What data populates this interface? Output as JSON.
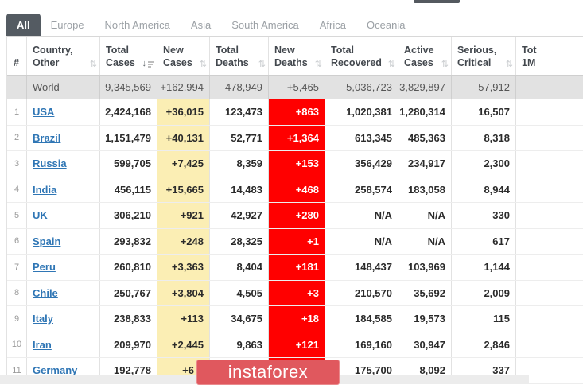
{
  "colors": {
    "tab_active_bg": "#545B62",
    "link": "#2F76B5",
    "new_cases_bg": "#FBEEB4",
    "new_deaths_bg": "#FF0000",
    "world_row_bg": "#E2E2E2",
    "watermark_bg": "#E0585E",
    "bottom_strip_bg": "#ECECEC"
  },
  "tabs": [
    {
      "label": "All",
      "active": true
    },
    {
      "label": "Europe",
      "active": false
    },
    {
      "label": "North America",
      "active": false
    },
    {
      "label": "Asia",
      "active": false
    },
    {
      "label": "South America",
      "active": false
    },
    {
      "label": "Africa",
      "active": false
    },
    {
      "label": "Oceania",
      "active": false
    }
  ],
  "table": {
    "columns": [
      {
        "key": "rank",
        "lines": [
          "#"
        ],
        "sort": "none",
        "align": "center"
      },
      {
        "key": "country",
        "lines": [
          "Country,",
          "Other"
        ],
        "sort": "both",
        "align": "left"
      },
      {
        "key": "total_cases",
        "lines": [
          "Total",
          "Cases"
        ],
        "sort": "desc",
        "align": "right"
      },
      {
        "key": "new_cases",
        "lines": [
          "New",
          "Cases"
        ],
        "sort": "both",
        "align": "right"
      },
      {
        "key": "total_deaths",
        "lines": [
          "Total",
          "Deaths"
        ],
        "sort": "both",
        "align": "right"
      },
      {
        "key": "new_deaths",
        "lines": [
          "New",
          "Deaths"
        ],
        "sort": "both",
        "align": "right"
      },
      {
        "key": "total_recovered",
        "lines": [
          "Total",
          "Recovered"
        ],
        "sort": "both",
        "align": "right"
      },
      {
        "key": "active_cases",
        "lines": [
          "Active",
          "Cases"
        ],
        "sort": "both",
        "align": "right"
      },
      {
        "key": "serious_critical",
        "lines": [
          "Serious,",
          "Critical"
        ],
        "sort": "both",
        "align": "right"
      },
      {
        "key": "per_million",
        "lines": [
          "Tot",
          "1M"
        ],
        "sort": "none",
        "align": "right"
      }
    ],
    "world_row": {
      "rank": "",
      "country": "World",
      "total_cases": "9,345,569",
      "new_cases": "+162,994",
      "total_deaths": "478,949",
      "new_deaths": "+5,465",
      "total_recovered": "5,036,723",
      "active_cases": "3,829,897",
      "serious_critical": "57,912",
      "per_million": ""
    },
    "rows": [
      {
        "rank": "1",
        "country": "USA",
        "total_cases": "2,424,168",
        "new_cases": "+36,015",
        "total_deaths": "123,473",
        "new_deaths": "+863",
        "total_recovered": "1,020,381",
        "active_cases": "1,280,314",
        "serious_critical": "16,507",
        "per_million": ""
      },
      {
        "rank": "2",
        "country": "Brazil",
        "total_cases": "1,151,479",
        "new_cases": "+40,131",
        "total_deaths": "52,771",
        "new_deaths": "+1,364",
        "total_recovered": "613,345",
        "active_cases": "485,363",
        "serious_critical": "8,318",
        "per_million": ""
      },
      {
        "rank": "3",
        "country": "Russia",
        "total_cases": "599,705",
        "new_cases": "+7,425",
        "total_deaths": "8,359",
        "new_deaths": "+153",
        "total_recovered": "356,429",
        "active_cases": "234,917",
        "serious_critical": "2,300",
        "per_million": ""
      },
      {
        "rank": "4",
        "country": "India",
        "total_cases": "456,115",
        "new_cases": "+15,665",
        "total_deaths": "14,483",
        "new_deaths": "+468",
        "total_recovered": "258,574",
        "active_cases": "183,058",
        "serious_critical": "8,944",
        "per_million": ""
      },
      {
        "rank": "5",
        "country": "UK",
        "total_cases": "306,210",
        "new_cases": "+921",
        "total_deaths": "42,927",
        "new_deaths": "+280",
        "total_recovered": "N/A",
        "active_cases": "N/A",
        "serious_critical": "330",
        "per_million": ""
      },
      {
        "rank": "6",
        "country": "Spain",
        "total_cases": "293,832",
        "new_cases": "+248",
        "total_deaths": "28,325",
        "new_deaths": "+1",
        "total_recovered": "N/A",
        "active_cases": "N/A",
        "serious_critical": "617",
        "per_million": ""
      },
      {
        "rank": "7",
        "country": "Peru",
        "total_cases": "260,810",
        "new_cases": "+3,363",
        "total_deaths": "8,404",
        "new_deaths": "+181",
        "total_recovered": "148,437",
        "active_cases": "103,969",
        "serious_critical": "1,144",
        "per_million": ""
      },
      {
        "rank": "8",
        "country": "Chile",
        "total_cases": "250,767",
        "new_cases": "+3,804",
        "total_deaths": "4,505",
        "new_deaths": "+3",
        "total_recovered": "210,570",
        "active_cases": "35,692",
        "serious_critical": "2,009",
        "per_million": ""
      },
      {
        "rank": "9",
        "country": "Italy",
        "total_cases": "238,833",
        "new_cases": "+113",
        "total_deaths": "34,675",
        "new_deaths": "+18",
        "total_recovered": "184,585",
        "active_cases": "19,573",
        "serious_critical": "115",
        "per_million": ""
      },
      {
        "rank": "10",
        "country": "Iran",
        "total_cases": "209,970",
        "new_cases": "+2,445",
        "total_deaths": "9,863",
        "new_deaths": "+121",
        "total_recovered": "169,160",
        "active_cases": "30,947",
        "serious_critical": "2,846",
        "per_million": ""
      },
      {
        "rank": "11",
        "country": "Germany",
        "total_cases": "192,778",
        "new_cases": "+6",
        "total_deaths": "",
        "new_deaths": "",
        "total_recovered": "175,700",
        "active_cases": "8,092",
        "serious_critical": "337",
        "per_million": ""
      }
    ]
  },
  "watermark": {
    "label": "instaforex"
  },
  "sort_glyph": "⇅"
}
